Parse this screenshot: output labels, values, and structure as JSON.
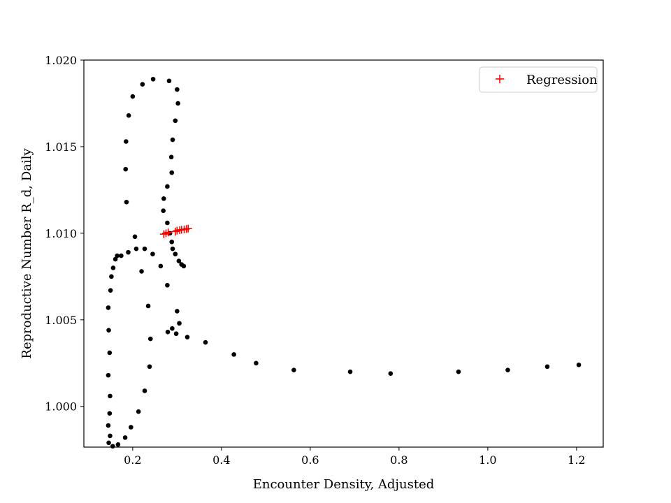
{
  "chart_data": {
    "type": "scatter",
    "title": "",
    "xlabel": "Encounter Density, Adjusted",
    "ylabel": "Reproductive Number R_d, Daily",
    "xlim": [
      0.09,
      1.26
    ],
    "ylim": [
      0.99765,
      1.02
    ],
    "xticks": [
      0.2,
      0.4,
      0.6,
      0.8,
      1.0,
      1.2
    ],
    "xtick_labels": [
      "0.2",
      "0.4",
      "0.6",
      "0.8",
      "1.0",
      "1.2"
    ],
    "yticks": [
      1.0,
      1.005,
      1.01,
      1.015,
      1.02
    ],
    "ytick_labels": [
      "1.000",
      "1.005",
      "1.010",
      "1.015",
      "1.020"
    ],
    "grid": false,
    "legend_position": "top-right",
    "series": [
      {
        "marker": "dot",
        "color": "#000000",
        "points": [
          [
            0.146,
            0.9979
          ],
          [
            0.149,
            0.9983
          ],
          [
            0.155,
            0.9977
          ],
          [
            0.167,
            0.9978
          ],
          [
            0.183,
            0.9982
          ],
          [
            0.196,
            0.9988
          ],
          [
            0.213,
            0.9997
          ],
          [
            0.227,
            1.0009
          ],
          [
            0.238,
            1.0023
          ],
          [
            0.24,
            1.0039
          ],
          [
            0.235,
            1.0058
          ],
          [
            0.22,
            1.0078
          ],
          [
            0.205,
            1.0098
          ],
          [
            0.186,
            1.0118
          ],
          [
            0.184,
            1.0137
          ],
          [
            0.185,
            1.0153
          ],
          [
            0.191,
            1.0168
          ],
          [
            0.2,
            1.0179
          ],
          [
            0.222,
            1.0186
          ],
          [
            0.246,
            1.0189
          ],
          [
            0.282,
            1.0188
          ],
          [
            0.3,
            1.0183
          ],
          [
            0.302,
            1.0175
          ],
          [
            0.296,
            1.0165
          ],
          [
            0.29,
            1.0154
          ],
          [
            0.287,
            1.0144
          ],
          [
            0.288,
            1.0135
          ],
          [
            0.278,
            1.0127
          ],
          [
            0.27,
            1.012
          ],
          [
            0.269,
            1.0113
          ],
          [
            0.278,
            1.0106
          ],
          [
            0.284,
            1.01
          ],
          [
            0.288,
            1.0095
          ],
          [
            0.29,
            1.0091
          ],
          [
            0.296,
            1.0088
          ],
          [
            0.304,
            1.0084
          ],
          [
            0.31,
            1.0082
          ],
          [
            0.315,
            1.0081
          ],
          [
            0.263,
            1.0081
          ],
          [
            0.245,
            1.0088
          ],
          [
            0.227,
            1.0091
          ],
          [
            0.208,
            1.0091
          ],
          [
            0.19,
            1.0089
          ],
          [
            0.174,
            1.0087
          ],
          [
            0.165,
            1.0087
          ],
          [
            0.161,
            1.0085
          ],
          [
            0.156,
            1.008
          ],
          [
            0.152,
            1.0075
          ],
          [
            0.15,
            1.0067
          ],
          [
            0.145,
            1.0057
          ],
          [
            0.146,
            1.0044
          ],
          [
            0.148,
            1.0031
          ],
          [
            0.145,
            1.0018
          ],
          [
            0.149,
            1.0006
          ],
          [
            0.148,
            0.9996
          ],
          [
            0.145,
            0.9989
          ],
          [
            0.278,
            1.007
          ],
          [
            0.3,
            1.0055
          ],
          [
            0.305,
            1.0048
          ],
          [
            0.289,
            1.0045
          ],
          [
            0.279,
            1.0043
          ],
          [
            0.298,
            1.0042
          ],
          [
            0.323,
            1.004
          ],
          [
            0.364,
            1.0037
          ],
          [
            0.428,
            1.003
          ],
          [
            0.478,
            1.0025
          ],
          [
            0.563,
            1.0021
          ],
          [
            0.69,
            1.002
          ],
          [
            0.781,
            1.0019
          ],
          [
            0.934,
            1.002
          ],
          [
            1.045,
            1.0021
          ],
          [
            1.134,
            1.0023
          ],
          [
            1.205,
            1.0024
          ]
        ]
      },
      {
        "name": "Regression",
        "marker": "plus",
        "color": "#ff0000",
        "points": [
          [
            0.27,
            1.00995
          ],
          [
            0.275,
            1.01
          ],
          [
            0.28,
            1.01005
          ],
          [
            0.296,
            1.0101
          ],
          [
            0.3,
            1.01015
          ],
          [
            0.306,
            1.01018
          ],
          [
            0.31,
            1.0102
          ],
          [
            0.316,
            1.01022
          ],
          [
            0.321,
            1.01025
          ],
          [
            0.325,
            1.01027
          ]
        ]
      }
    ]
  }
}
